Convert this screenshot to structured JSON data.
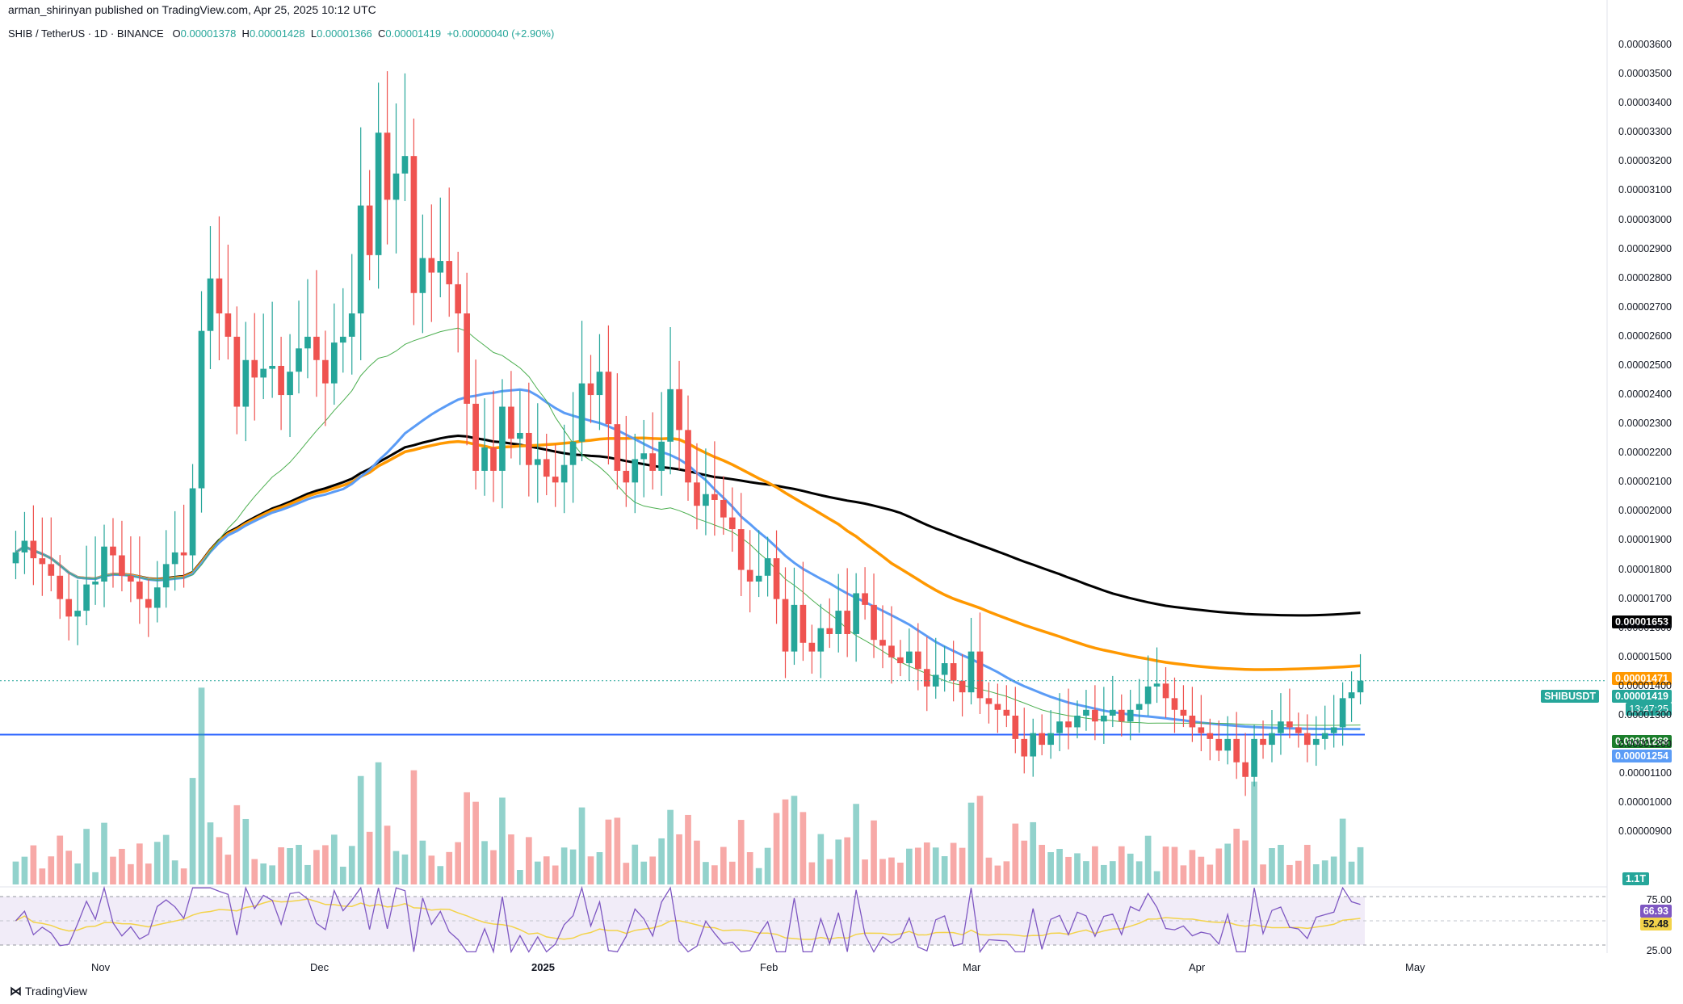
{
  "header": {
    "published": "arman_shirinyan published on TradingView.com, Apr 25, 2025 10:12 UTC",
    "symbol": "SHIB / TetherUS · 1D · BINANCE",
    "o_label": "O",
    "o_value": "0.00001378",
    "h_label": "H",
    "h_value": "0.00001428",
    "l_label": "L",
    "l_value": "0.00001366",
    "c_label": "C",
    "c_value": "0.00001419",
    "change": "+0.00000040 (+2.90%)"
  },
  "brand": "TradingView",
  "badges": {
    "symbol_tag": "SHIBUSDT",
    "ma200": "0.00001653",
    "ma100": "0.00001471",
    "last": "0.00001419",
    "countdown": "13:47:25",
    "ma20": "0.00001268",
    "ma50": "0.00001254",
    "volume": "1.1T",
    "rsi": "66.93",
    "rsi_ma": "52.48",
    "rsi_75": "75.00",
    "rsi_25": "25.00"
  },
  "colors": {
    "up": "#26a69a",
    "down": "#ef5350",
    "ma20": "#4caf50",
    "ma50": "#5b9cf6",
    "ma100": "#ff9800",
    "ma200": "#000000",
    "support": "#2962ff",
    "rsi": "#7e57c2",
    "rsi_ma": "#f3d34a"
  },
  "chart_data": {
    "type": "candlestick",
    "title": "SHIB / TetherUS · 1D · BINANCE",
    "ylim": [
      8.4e-06,
      3.65e-05
    ],
    "y_ticks": [
      "0.00000900",
      "0.00001000",
      "0.00001100",
      "0.00001200",
      "0.00001300",
      "0.00001400",
      "0.00001500",
      "0.00001600",
      "0.00001700",
      "0.00001800",
      "0.00001900",
      "0.00002000",
      "0.00002100",
      "0.00002200",
      "0.00002300",
      "0.00002400",
      "0.00002500",
      "0.00002600",
      "0.00002700",
      "0.00002800",
      "0.00002900",
      "0.00003000",
      "0.00003100",
      "0.00003200",
      "0.00003300",
      "0.00003400",
      "0.00003500",
      "0.00003600"
    ],
    "x_labels": [
      "Nov",
      "Dec",
      "2025",
      "Feb",
      "Mar",
      "Apr",
      "May"
    ],
    "support_level": 1.235e-05,
    "series_close": [
      1.86,
      1.9,
      1.84,
      1.82,
      1.78,
      1.7,
      1.64,
      1.66,
      1.75,
      1.76,
      1.88,
      1.85,
      1.78,
      1.76,
      1.7,
      1.67,
      1.74,
      1.82,
      1.86,
      1.85,
      2.08,
      2.62,
      2.8,
      2.68,
      2.6,
      2.36,
      2.52,
      2.46,
      2.49,
      2.5,
      2.4,
      2.48,
      2.56,
      2.6,
      2.52,
      2.44,
      2.58,
      2.6,
      2.68,
      3.05,
      2.88,
      3.3,
      3.07,
      3.16,
      3.22,
      2.75,
      2.87,
      2.82,
      2.86,
      2.78,
      2.68,
      2.37,
      2.14,
      2.22,
      2.14,
      2.36,
      2.25,
      2.27,
      2.16,
      2.18,
      2.12,
      2.1,
      2.16,
      2.24,
      2.44,
      2.4,
      2.48,
      2.3,
      2.14,
      2.1,
      2.18,
      2.2,
      2.14,
      2.24,
      2.42,
      2.28,
      2.1,
      2.02,
      2.06,
      2.04,
      1.98,
      1.94,
      1.8,
      1.76,
      1.78,
      1.84,
      1.7,
      1.52,
      1.68,
      1.55,
      1.52,
      1.6,
      1.58,
      1.66,
      1.58,
      1.72,
      1.68,
      1.56,
      1.54,
      1.5,
      1.48,
      1.52,
      1.46,
      1.4,
      1.44,
      1.48,
      1.42,
      1.38,
      1.52,
      1.36,
      1.34,
      1.32,
      1.3,
      1.22,
      1.16,
      1.24,
      1.2,
      1.24,
      1.28,
      1.26,
      1.3,
      1.32,
      1.28,
      1.3,
      1.32,
      1.28,
      1.32,
      1.34,
      1.4,
      1.41,
      1.36,
      1.32,
      1.3,
      1.26,
      1.24,
      1.22,
      1.18,
      1.22,
      1.14,
      1.09,
      1.22,
      1.2,
      1.24,
      1.28,
      1.26,
      1.24,
      1.2,
      1.22,
      1.24,
      1.26,
      1.36,
      1.38,
      1.42
    ],
    "ma_lines": [
      {
        "name": "MA200",
        "value": 1.653e-05
      },
      {
        "name": "MA100",
        "value": 1.471e-05
      },
      {
        "name": "MA20",
        "value": 1.268e-05
      },
      {
        "name": "MA50",
        "value": 1.254e-05
      }
    ],
    "volume_last": "1.1T",
    "rsi": {
      "value": 66.93,
      "ma": 52.48,
      "upper": 75,
      "lower": 25
    },
    "grid": false
  }
}
